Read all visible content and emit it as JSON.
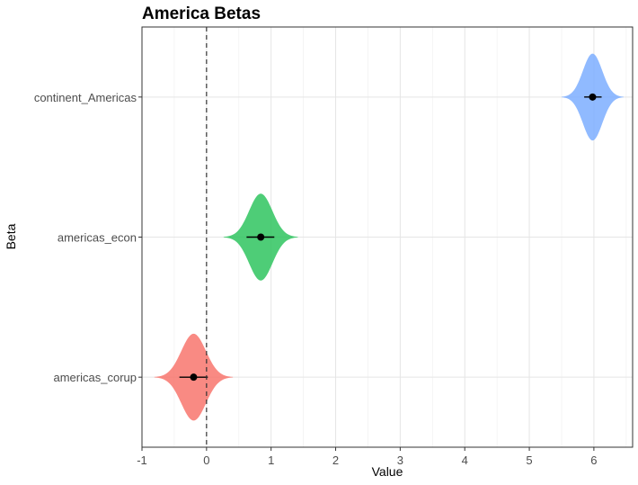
{
  "chart_data": {
    "type": "violin",
    "title": "America Betas",
    "xlabel": "Value",
    "ylabel": "Beta",
    "xlim": [
      -1,
      6.6
    ],
    "x_ticks": [
      -1,
      0,
      1,
      2,
      3,
      4,
      5,
      6
    ],
    "reference_line": {
      "x": 0,
      "style": "dashed"
    },
    "grid": true,
    "legend": "none",
    "categories": [
      "continent_Americas",
      "americas_econ",
      "americas_corup"
    ],
    "series": [
      {
        "category": "continent_Americas",
        "point": 5.98,
        "interval": [
          5.85,
          6.12
        ],
        "spread": 0.15,
        "color": "#7CAEFF"
      },
      {
        "category": "americas_econ",
        "point": 0.84,
        "interval": [
          0.62,
          1.05
        ],
        "spread": 0.18,
        "color": "#2FC45F"
      },
      {
        "category": "americas_corup",
        "point": -0.2,
        "interval": [
          -0.42,
          0.02
        ],
        "spread": 0.19,
        "color": "#F8766D"
      }
    ]
  }
}
